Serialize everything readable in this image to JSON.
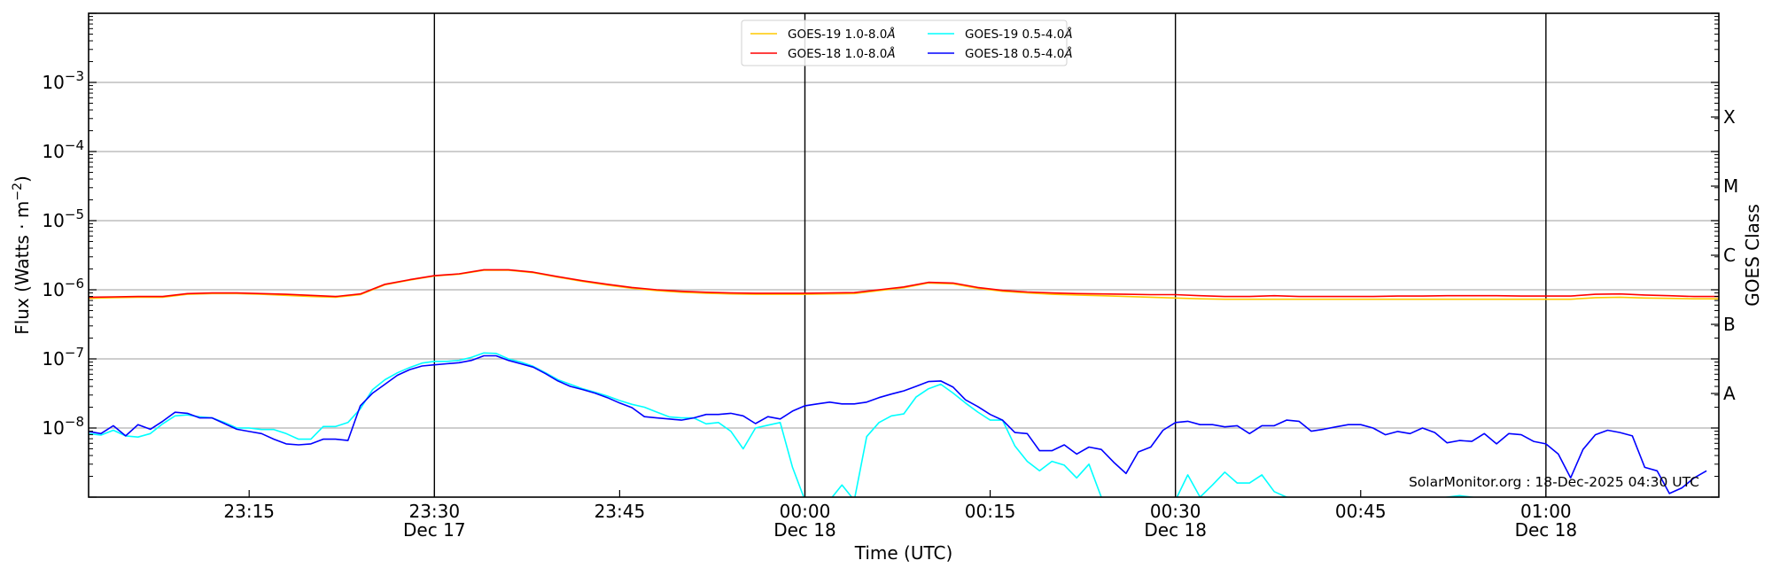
{
  "chart_data": {
    "type": "line",
    "xlabel": "Time (UTC)",
    "ylabel": "Flux (Watts · m",
    "ylabel_exp": "−2",
    "ylabel_close": ")",
    "right_label": "GOES Class",
    "yscale": "log",
    "ylim": [
      1e-09,
      0.01
    ],
    "xlim": [
      "23:02",
      "01:14"
    ],
    "grid": "horizontal at decades",
    "y_ticks": [
      {
        "value": 0.001,
        "base": "10",
        "exp": "−3"
      },
      {
        "value": 0.0001,
        "base": "10",
        "exp": "−4"
      },
      {
        "value": 1e-05,
        "base": "10",
        "exp": "−5"
      },
      {
        "value": 1e-06,
        "base": "10",
        "exp": "−6"
      },
      {
        "value": 1e-07,
        "base": "10",
        "exp": "−7"
      },
      {
        "value": 1e-08,
        "base": "10",
        "exp": "−8"
      }
    ],
    "class_labels": [
      {
        "label": "X",
        "value": 0.000316
      },
      {
        "label": "M",
        "value": 3.16e-05
      },
      {
        "label": "C",
        "value": 3.16e-06
      },
      {
        "label": "B",
        "value": 3.16e-07
      },
      {
        "label": "A",
        "value": 3.16e-08
      }
    ],
    "x_ticks": [
      {
        "time": "23:15",
        "label": "23:15",
        "date": "",
        "vline": false
      },
      {
        "time": "23:30",
        "label": "23:30",
        "date": "Dec 17",
        "vline": true
      },
      {
        "time": "23:45",
        "label": "23:45",
        "date": "",
        "vline": false
      },
      {
        "time": "00:00",
        "label": "00:00",
        "date": "Dec 18",
        "vline": true
      },
      {
        "time": "00:15",
        "label": "00:15",
        "date": "",
        "vline": false
      },
      {
        "time": "00:30",
        "label": "00:30",
        "date": "Dec 18",
        "vline": true
      },
      {
        "time": "00:45",
        "label": "00:45",
        "date": "",
        "vline": false
      },
      {
        "time": "01:00",
        "label": "01:00",
        "date": "Dec 18",
        "vline": true
      }
    ],
    "legend_position": "top-center",
    "watermark": "SolarMonitor.org : 18-Dec-2025 04:30 UTC",
    "series": [
      {
        "name": "GOES-19 1.0-8.0Å",
        "label_main": "GOES-19 1.0-8.0",
        "label_unit": "Å",
        "color": "#ffc800",
        "start": "23:02",
        "step_min": 2,
        "values": [
          7.5e-07,
          7.7e-07,
          7.8e-07,
          7.8e-07,
          8.6e-07,
          8.8e-07,
          8.8e-07,
          8.6e-07,
          8.3e-07,
          8e-07,
          7.8e-07,
          8.5e-07,
          1.18e-06,
          1.38e-06,
          1.58e-06,
          1.68e-06,
          1.92e-06,
          1.92e-06,
          1.77e-06,
          1.52e-06,
          1.32e-06,
          1.17e-06,
          1.05e-06,
          9.7e-07,
          9.2e-07,
          8.9e-07,
          8.7e-07,
          8.6e-07,
          8.6e-07,
          8.6e-07,
          8.7e-07,
          8.8e-07,
          9.7e-07,
          1.07e-06,
          1.25e-06,
          1.22e-06,
          1.05e-06,
          9.5e-07,
          9e-07,
          8.6e-07,
          8.4e-07,
          8.2e-07,
          8e-07,
          7.8e-07,
          7.6e-07,
          7.4e-07,
          7.3e-07,
          7.3e-07,
          7.3e-07,
          7.3e-07,
          7.3e-07,
          7.3e-07,
          7.3e-07,
          7.3e-07,
          7.3e-07,
          7.3e-07,
          7.3e-07,
          7.3e-07,
          7.3e-07,
          7.3e-07,
          7.3e-07,
          7.7e-07,
          7.8e-07,
          7.6e-07,
          7.5e-07,
          7.4e-07,
          7.4e-07
        ]
      },
      {
        "name": "GOES-19 0.5-4.0Å",
        "label_main": "GOES-19 0.5-4.0",
        "label_unit": "Å",
        "color": "#00ffff",
        "start": "23:02",
        "step_min": 1,
        "values": [
          8.3e-09,
          7.9e-09,
          9.3e-09,
          7.7e-09,
          7.4e-09,
          8.3e-09,
          1.15e-08,
          1.5e-08,
          1.55e-08,
          1.45e-08,
          1.4e-08,
          1.2e-08,
          1e-08,
          1e-08,
          9.5e-09,
          9.5e-09,
          8.3e-09,
          6.9e-09,
          6.9e-09,
          1.05e-08,
          1.05e-08,
          1.2e-08,
          1.9e-08,
          3.6e-08,
          5e-08,
          6.3e-08,
          7.5e-08,
          8.7e-08,
          9.2e-08,
          9.2e-08,
          9.5e-08,
          1.05e-07,
          1.22e-07,
          1.2e-07,
          1e-07,
          9e-08,
          7.8e-08,
          6.3e-08,
          5e-08,
          4.3e-08,
          3.7e-08,
          3.3e-08,
          2.9e-08,
          2.5e-08,
          2.2e-08,
          2e-08,
          1.7e-08,
          1.45e-08,
          1.4e-08,
          1.4e-08,
          1.15e-08,
          1.2e-08,
          9e-09,
          5e-09,
          1e-08,
          1.1e-08,
          1.2e-08,
          2.7e-09,
          9e-10,
          6e-10,
          9e-10,
          1.5e-09,
          9e-10,
          7.5e-09,
          1.2e-08,
          1.5e-08,
          1.6e-08,
          2.8e-08,
          3.7e-08,
          4.3e-08,
          3.2e-08,
          2.3e-08,
          1.7e-08,
          1.3e-08,
          1.3e-08,
          5.5e-09,
          3.3e-09,
          2.4e-09,
          3.3e-09,
          2.9e-09,
          1.9e-09,
          3e-09,
          1e-09,
          9e-10,
          9e-10,
          9e-10,
          9e-10,
          9e-10,
          9e-10,
          2.1e-09,
          1e-09,
          1.5e-09,
          2.3e-09,
          1.6e-09,
          1.6e-09,
          2.1e-09,
          1.2e-09,
          1e-09,
          9.5e-10,
          9.5e-10,
          9.5e-10,
          9.5e-10,
          9.5e-10,
          9.5e-10,
          9.5e-10,
          9.5e-10,
          9.5e-10,
          9.5e-10,
          9.5e-10,
          9.5e-10,
          1e-09,
          1.05e-09,
          1e-09,
          9.5e-10,
          9.5e-10,
          9.5e-10,
          9.5e-10,
          9.5e-10,
          9.5e-10,
          9.5e-10,
          9.5e-10,
          9.5e-10,
          9.5e-10,
          9.5e-10,
          9.5e-10,
          9.5e-10,
          9.5e-10,
          9.5e-10,
          9.5e-10,
          9.5e-10,
          9.5e-10,
          9.5e-10
        ]
      },
      {
        "name": "GOES-18 1.0-8.0Å",
        "label_main": "GOES-18 1.0-8.0",
        "label_unit": "Å",
        "color": "#ff0000",
        "start": "23:02",
        "step_min": 2,
        "values": [
          7.8e-07,
          7.9e-07,
          8e-07,
          8e-07,
          8.8e-07,
          9e-07,
          9e-07,
          8.8e-07,
          8.6e-07,
          8.3e-07,
          8e-07,
          8.7e-07,
          1.2e-06,
          1.4e-06,
          1.6e-06,
          1.7e-06,
          1.95e-06,
          1.95e-06,
          1.8e-06,
          1.55e-06,
          1.35e-06,
          1.2e-06,
          1.08e-06,
          1e-06,
          9.5e-07,
          9.2e-07,
          9e-07,
          8.9e-07,
          8.9e-07,
          8.9e-07,
          9e-07,
          9.1e-07,
          1e-06,
          1.1e-06,
          1.28e-06,
          1.25e-06,
          1.08e-06,
          9.8e-07,
          9.3e-07,
          9e-07,
          8.8e-07,
          8.7e-07,
          8.6e-07,
          8.5e-07,
          8.5e-07,
          8.2e-07,
          8e-07,
          8e-07,
          8.2e-07,
          8e-07,
          8e-07,
          8e-07,
          8e-07,
          8.1e-07,
          8.1e-07,
          8.2e-07,
          8.2e-07,
          8.2e-07,
          8.1e-07,
          8.1e-07,
          8.1e-07,
          8.6e-07,
          8.7e-07,
          8.4e-07,
          8.2e-07,
          8e-07,
          8e-07
        ]
      },
      {
        "name": "GOES-18 0.5-4.0Å",
        "label_main": "GOES-18 0.5-4.0",
        "label_unit": "Å",
        "color": "#0000ff",
        "start": "23:02",
        "step_min": 1,
        "values": [
          8.9e-09,
          8.3e-09,
          1.08e-08,
          7.7e-09,
          1.12e-08,
          9.6e-09,
          1.25e-08,
          1.69e-08,
          1.63e-08,
          1.4e-08,
          1.4e-08,
          1.16e-08,
          9.6e-09,
          8.9e-09,
          8.3e-09,
          6.9e-09,
          5.9e-09,
          5.7e-09,
          5.9e-09,
          6.9e-09,
          6.9e-09,
          6.6e-09,
          2.1e-08,
          3.2e-08,
          4.3e-08,
          5.8e-08,
          7e-08,
          7.9e-08,
          8.2e-08,
          8.5e-08,
          8.8e-08,
          9.5e-08,
          1.11e-07,
          1.11e-07,
          9.5e-08,
          8.5e-08,
          7.6e-08,
          6.1e-08,
          4.8e-08,
          4e-08,
          3.6e-08,
          3.2e-08,
          2.75e-08,
          2.3e-08,
          1.97e-08,
          1.46e-08,
          1.4e-08,
          1.35e-08,
          1.3e-08,
          1.4e-08,
          1.57e-08,
          1.57e-08,
          1.63e-08,
          1.5e-08,
          1.16e-08,
          1.46e-08,
          1.35e-08,
          1.76e-08,
          2.1e-08,
          2.23e-08,
          2.37e-08,
          2.23e-08,
          2.23e-08,
          2.37e-08,
          2.75e-08,
          3.1e-08,
          3.45e-08,
          4e-08,
          4.7e-08,
          4.8e-08,
          3.9e-08,
          2.56e-08,
          2.04e-08,
          1.57e-08,
          1.3e-08,
          8.6e-09,
          8.3e-09,
          4.7e-09,
          4.7e-09,
          5.7e-09,
          4.2e-09,
          5.3e-09,
          4.9e-09,
          3.2e-09,
          2.2e-09,
          4.5e-09,
          5.3e-09,
          9.3e-09,
          1.2e-08,
          1.25e-08,
          1.12e-08,
          1.12e-08,
          1.04e-08,
          1.08e-08,
          8.3e-09,
          1.08e-08,
          1.08e-08,
          1.3e-08,
          1.25e-08,
          9e-09,
          9.6e-09,
          1.04e-08,
          1.12e-08,
          1.12e-08,
          1e-08,
          8e-09,
          8.9e-09,
          8.3e-09,
          1e-08,
          8.6e-09,
          6.1e-09,
          6.6e-09,
          6.4e-09,
          8.3e-09,
          5.9e-09,
          8.3e-09,
          8e-09,
          6.4e-09,
          5.9e-09,
          4.2e-09,
          1.9e-09,
          4.9e-09,
          8e-09,
          9.3e-09,
          8.6e-09,
          7.7e-09,
          2.7e-09,
          2.4e-09,
          1.13e-09,
          1.36e-09,
          1.9e-09,
          2.4e-09
        ]
      }
    ],
    "legend_order": [
      0,
      1,
      2,
      3
    ]
  }
}
